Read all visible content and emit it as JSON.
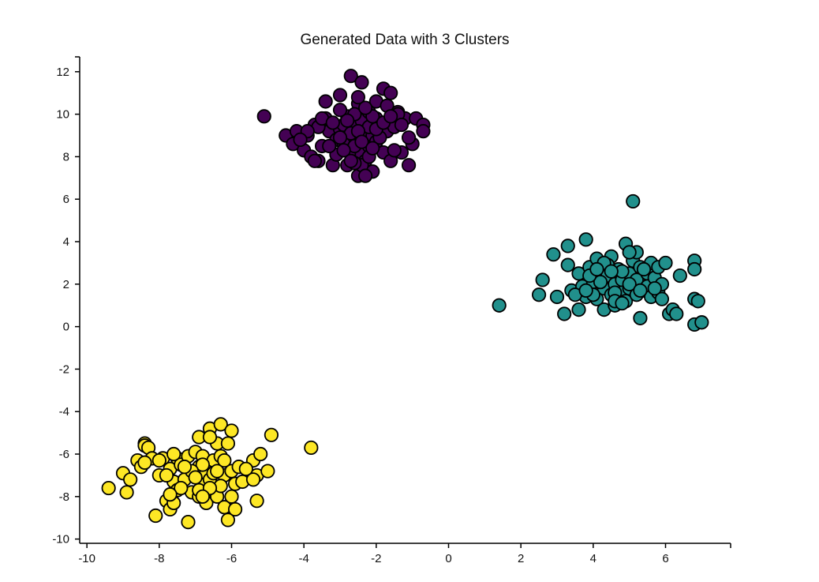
{
  "chart_data": {
    "type": "scatter",
    "title": "Generated Data with 3 Clusters",
    "xlabel": "",
    "ylabel": "",
    "xlim": [
      -10.2,
      7.8
    ],
    "ylim": [
      -10.2,
      12.7
    ],
    "x_ticks": [
      -10,
      -8,
      -6,
      -4,
      -2,
      0,
      2,
      4,
      6
    ],
    "y_ticks": [
      -10,
      -8,
      -6,
      -4,
      -2,
      0,
      2,
      4,
      6,
      8,
      10,
      12
    ],
    "grid": false,
    "legend": "none",
    "series": [
      {
        "color": "#440154",
        "points": [
          [
            -5.1,
            9.9
          ],
          [
            -4.5,
            9.0
          ],
          [
            -4.3,
            8.6
          ],
          [
            -4.2,
            9.2
          ],
          [
            -4.0,
            8.3
          ],
          [
            -3.9,
            9.0
          ],
          [
            -3.8,
            8.0
          ],
          [
            -3.7,
            9.5
          ],
          [
            -3.6,
            7.8
          ],
          [
            -3.5,
            8.5
          ],
          [
            -3.4,
            9.8
          ],
          [
            -3.4,
            10.6
          ],
          [
            -3.3,
            9.2
          ],
          [
            -3.2,
            7.6
          ],
          [
            -3.1,
            8.8
          ],
          [
            -3.0,
            10.9
          ],
          [
            -3.0,
            9.3
          ],
          [
            -2.9,
            8.6
          ],
          [
            -2.8,
            9.9
          ],
          [
            -2.8,
            7.6
          ],
          [
            -2.7,
            8.3
          ],
          [
            -2.7,
            11.8
          ],
          [
            -2.6,
            9.5
          ],
          [
            -2.5,
            8.9
          ],
          [
            -2.5,
            10.5
          ],
          [
            -2.4,
            9.7
          ],
          [
            -2.4,
            8.1
          ],
          [
            -2.4,
            11.5
          ],
          [
            -2.3,
            7.8
          ],
          [
            -2.3,
            9.2
          ],
          [
            -2.2,
            10.1
          ],
          [
            -2.2,
            8.5
          ],
          [
            -2.1,
            7.3
          ],
          [
            -2.1,
            9.0
          ],
          [
            -2.0,
            10.6
          ],
          [
            -2.0,
            8.7
          ],
          [
            -1.9,
            9.5
          ],
          [
            -1.8,
            11.2
          ],
          [
            -1.8,
            8.2
          ],
          [
            -1.7,
            10.4
          ],
          [
            -1.7,
            9.2
          ],
          [
            -1.6,
            7.8
          ],
          [
            -1.6,
            11.0
          ],
          [
            -1.5,
            9.4
          ],
          [
            -1.4,
            10.1
          ],
          [
            -1.3,
            8.2
          ],
          [
            -1.2,
            9.8
          ],
          [
            -1.1,
            7.6
          ],
          [
            -1.0,
            8.6
          ],
          [
            -0.9,
            9.8
          ],
          [
            -0.7,
            9.5
          ],
          [
            -0.7,
            9.2
          ],
          [
            -2.5,
            7.1
          ],
          [
            -2.6,
            8.5
          ],
          [
            -2.9,
            9.5
          ],
          [
            -3.1,
            8.1
          ],
          [
            -2.2,
            9.4
          ],
          [
            -1.9,
            8.9
          ],
          [
            -2.4,
            7.6
          ],
          [
            -3.6,
            9.4
          ],
          [
            -2.0,
            9.8
          ],
          [
            -2.7,
            9.1
          ],
          [
            -1.1,
            8.9
          ],
          [
            -2.3,
            7.1
          ],
          [
            -3.9,
            9.2
          ],
          [
            -4.1,
            8.8
          ],
          [
            -1.4,
            10.0
          ],
          [
            -2.6,
            10.0
          ],
          [
            -3.3,
            8.5
          ],
          [
            -2.2,
            8.0
          ],
          [
            -2.8,
            9.7
          ],
          [
            -2.1,
            9.9
          ],
          [
            -1.5,
            8.3
          ],
          [
            -3.0,
            8.9
          ],
          [
            -2.5,
            9.2
          ],
          [
            -2.0,
            9.3
          ],
          [
            -2.4,
            8.7
          ],
          [
            -3.5,
            9.8
          ],
          [
            -2.6,
            7.7
          ],
          [
            -1.8,
            9.6
          ],
          [
            -2.9,
            8.3
          ],
          [
            -2.3,
            10.3
          ],
          [
            -1.6,
            9.9
          ],
          [
            -3.7,
            7.8
          ],
          [
            -2.7,
            7.8
          ],
          [
            -3.2,
            9.6
          ],
          [
            -2.1,
            8.4
          ],
          [
            -1.3,
            9.5
          ],
          [
            -2.5,
            10.8
          ],
          [
            -3.0,
            10.2
          ]
        ]
      },
      {
        "color": "#21908c",
        "points": [
          [
            1.4,
            1.0
          ],
          [
            2.5,
            1.5
          ],
          [
            2.6,
            2.2
          ],
          [
            2.9,
            3.4
          ],
          [
            3.0,
            1.4
          ],
          [
            3.2,
            0.6
          ],
          [
            3.3,
            3.8
          ],
          [
            3.3,
            2.9
          ],
          [
            3.4,
            1.7
          ],
          [
            3.6,
            2.5
          ],
          [
            3.6,
            0.8
          ],
          [
            3.7,
            1.9
          ],
          [
            3.8,
            4.1
          ],
          [
            3.8,
            1.4
          ],
          [
            3.9,
            2.8
          ],
          [
            4.0,
            2.1
          ],
          [
            4.1,
            1.3
          ],
          [
            4.1,
            3.2
          ],
          [
            4.2,
            2.6
          ],
          [
            4.3,
            1.8
          ],
          [
            4.3,
            0.8
          ],
          [
            4.4,
            2.4
          ],
          [
            4.5,
            3.3
          ],
          [
            4.5,
            1.5
          ],
          [
            4.6,
            2.0
          ],
          [
            4.6,
            1.0
          ],
          [
            4.7,
            2.7
          ],
          [
            4.7,
            1.3
          ],
          [
            4.8,
            2.2
          ],
          [
            4.8,
            1.6
          ],
          [
            4.9,
            3.9
          ],
          [
            4.9,
            1.2
          ],
          [
            5.0,
            2.5
          ],
          [
            5.0,
            1.8
          ],
          [
            5.1,
            5.9
          ],
          [
            5.1,
            3.1
          ],
          [
            5.2,
            2.2
          ],
          [
            5.2,
            1.5
          ],
          [
            5.3,
            0.4
          ],
          [
            5.3,
            2.8
          ],
          [
            5.4,
            1.7
          ],
          [
            5.5,
            2.5
          ],
          [
            5.5,
            1.9
          ],
          [
            5.6,
            1.4
          ],
          [
            5.6,
            3.0
          ],
          [
            5.7,
            2.3
          ],
          [
            5.8,
            2.8
          ],
          [
            5.8,
            1.6
          ],
          [
            5.9,
            1.3
          ],
          [
            5.9,
            2.0
          ],
          [
            6.0,
            3.0
          ],
          [
            6.1,
            0.6
          ],
          [
            6.2,
            0.8
          ],
          [
            6.3,
            0.6
          ],
          [
            6.4,
            2.4
          ],
          [
            6.8,
            3.1
          ],
          [
            6.8,
            2.7
          ],
          [
            6.8,
            1.3
          ],
          [
            6.8,
            0.1
          ],
          [
            6.9,
            1.2
          ],
          [
            7.0,
            0.2
          ],
          [
            3.5,
            1.5
          ],
          [
            4.2,
            2.1
          ],
          [
            4.6,
            1.6
          ],
          [
            5.0,
            2.0
          ],
          [
            4.4,
            2.9
          ],
          [
            5.4,
            2.7
          ],
          [
            4.8,
            2.6
          ],
          [
            4.0,
            1.5
          ],
          [
            5.2,
            3.5
          ],
          [
            4.6,
            1.2
          ],
          [
            3.9,
            2.4
          ],
          [
            5.7,
            1.8
          ],
          [
            4.3,
            3.0
          ],
          [
            5.0,
            3.5
          ],
          [
            4.1,
            2.7
          ],
          [
            4.8,
            1.1
          ],
          [
            5.3,
            1.7
          ],
          [
            3.8,
            1.7
          ],
          [
            4.5,
            2.6
          ]
        ]
      },
      {
        "color": "#fde725",
        "points": [
          [
            -9.4,
            -7.6
          ],
          [
            -9.0,
            -6.9
          ],
          [
            -8.9,
            -7.8
          ],
          [
            -8.8,
            -7.2
          ],
          [
            -8.6,
            -6.3
          ],
          [
            -8.5,
            -6.6
          ],
          [
            -8.4,
            -5.5
          ],
          [
            -8.4,
            -5.6
          ],
          [
            -8.3,
            -5.7
          ],
          [
            -8.2,
            -6.2
          ],
          [
            -8.1,
            -8.9
          ],
          [
            -8.0,
            -7.0
          ],
          [
            -7.9,
            -6.2
          ],
          [
            -7.8,
            -8.2
          ],
          [
            -7.7,
            -6.7
          ],
          [
            -7.7,
            -8.6
          ],
          [
            -7.6,
            -7.3
          ],
          [
            -7.6,
            -8.3
          ],
          [
            -7.5,
            -6.2
          ],
          [
            -7.5,
            -7.7
          ],
          [
            -7.4,
            -6.5
          ],
          [
            -7.3,
            -7.2
          ],
          [
            -7.2,
            -9.2
          ],
          [
            -7.2,
            -6.1
          ],
          [
            -7.1,
            -7.8
          ],
          [
            -7.0,
            -7.0
          ],
          [
            -7.0,
            -5.9
          ],
          [
            -6.9,
            -8.0
          ],
          [
            -6.9,
            -6.6
          ],
          [
            -6.9,
            -5.2
          ],
          [
            -6.8,
            -7.4
          ],
          [
            -6.8,
            -6.1
          ],
          [
            -6.7,
            -8.3
          ],
          [
            -6.7,
            -6.9
          ],
          [
            -6.6,
            -4.8
          ],
          [
            -6.6,
            -7.2
          ],
          [
            -6.5,
            -6.3
          ],
          [
            -6.5,
            -7.7
          ],
          [
            -6.4,
            -5.5
          ],
          [
            -6.4,
            -8.0
          ],
          [
            -6.3,
            -4.6
          ],
          [
            -6.3,
            -6.1
          ],
          [
            -6.2,
            -7.0
          ],
          [
            -6.2,
            -8.5
          ],
          [
            -6.1,
            -5.5
          ],
          [
            -6.1,
            -9.1
          ],
          [
            -6.0,
            -4.9
          ],
          [
            -6.0,
            -6.8
          ],
          [
            -5.9,
            -7.4
          ],
          [
            -5.9,
            -8.6
          ],
          [
            -5.8,
            -6.6
          ],
          [
            -5.7,
            -7.3
          ],
          [
            -5.4,
            -6.3
          ],
          [
            -5.3,
            -8.2
          ],
          [
            -5.3,
            -7.0
          ],
          [
            -5.2,
            -6.0
          ],
          [
            -5.0,
            -6.8
          ],
          [
            -4.9,
            -5.1
          ],
          [
            -3.8,
            -5.7
          ],
          [
            -7.4,
            -7.6
          ],
          [
            -6.8,
            -6.5
          ],
          [
            -7.1,
            -6.8
          ],
          [
            -6.5,
            -6.9
          ],
          [
            -6.0,
            -8.0
          ],
          [
            -7.8,
            -7.0
          ],
          [
            -8.4,
            -6.4
          ],
          [
            -6.6,
            -5.2
          ],
          [
            -7.0,
            -7.1
          ],
          [
            -6.3,
            -7.5
          ],
          [
            -5.6,
            -6.7
          ],
          [
            -7.6,
            -6.0
          ],
          [
            -6.9,
            -7.7
          ],
          [
            -6.2,
            -6.3
          ],
          [
            -8.0,
            -6.3
          ],
          [
            -7.3,
            -6.6
          ],
          [
            -6.6,
            -7.6
          ],
          [
            -5.4,
            -7.2
          ],
          [
            -7.7,
            -7.9
          ],
          [
            -6.8,
            -8.0
          ],
          [
            -6.4,
            -6.8
          ]
        ]
      }
    ]
  }
}
